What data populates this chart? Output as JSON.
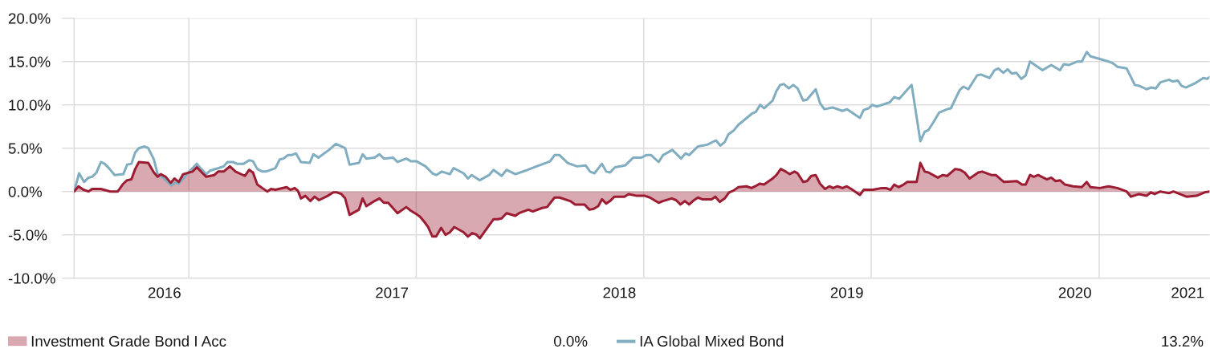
{
  "chart_data": {
    "type": "line",
    "xlim": [
      "2016-07-01",
      "2021-06-27"
    ],
    "ylim": [
      -10,
      20
    ],
    "xticks": [
      {
        "value": "2016-11-23",
        "label": "2016"
      },
      {
        "value": "2017-01-01",
        "label": null
      },
      {
        "value": "2017-11-23",
        "label": "2017"
      },
      {
        "value": "2018-01-01",
        "label": null
      },
      {
        "value": "2018-11-23",
        "label": "2018"
      },
      {
        "value": "2019-01-01",
        "label": null
      },
      {
        "value": "2019-11-23",
        "label": "2019"
      },
      {
        "value": "2020-01-01",
        "label": null
      },
      {
        "value": "2020-11-23",
        "label": "2020"
      },
      {
        "value": "2021-01-01",
        "label": null
      },
      {
        "value": "2021-05-23",
        "label": "2021"
      }
    ],
    "yticks": [
      {
        "value": -10,
        "label": "-10.0%"
      },
      {
        "value": -5,
        "label": "-5.0%"
      },
      {
        "value": 0,
        "label": "0.0%"
      },
      {
        "value": 5,
        "label": "5.0%"
      },
      {
        "value": 10,
        "label": "10.0%"
      },
      {
        "value": 15,
        "label": "15.0%"
      },
      {
        "value": 20,
        "label": "20.0%"
      }
    ],
    "grid": true,
    "legend": "bottom",
    "annotations": [
      "0.0%",
      "13.2%"
    ],
    "series": [
      {
        "name": "Investment Grade Bond I Acc",
        "type": "area",
        "color": "#9c1d33",
        "x": [
          "2016-07-01",
          "2016-07-08",
          "2016-07-16",
          "2016-07-24",
          "2016-07-30",
          "2016-08-13",
          "2016-08-28",
          "2016-09-09",
          "2016-09-18",
          "2016-09-24",
          "2016-10-01",
          "2016-10-07",
          "2016-10-13",
          "2016-10-28",
          "2016-11-06",
          "2016-11-12",
          "2016-11-17",
          "2016-11-25",
          "2016-12-03",
          "2016-12-09",
          "2016-12-16",
          "2016-12-23",
          "2017-01-07",
          "2017-01-14",
          "2017-01-22",
          "2017-01-29",
          "2017-02-11",
          "2017-02-17",
          "2017-02-26",
          "2017-03-08",
          "2017-03-17",
          "2017-04-01",
          "2017-04-08",
          "2017-04-14",
          "2017-04-21",
          "2017-04-29",
          "2017-05-07",
          "2017-05-13",
          "2017-05-20",
          "2017-06-07",
          "2017-06-13",
          "2017-06-20",
          "2017-06-25",
          "2017-06-30",
          "2017-07-07",
          "2017-07-15",
          "2017-07-22",
          "2017-07-29",
          "2017-08-12",
          "2017-08-21",
          "2017-08-27",
          "2017-09-03",
          "2017-09-09",
          "2017-09-16",
          "2017-10-01",
          "2017-10-07",
          "2017-10-13",
          "2017-10-26",
          "2017-11-03",
          "2017-11-10",
          "2017-11-17",
          "2017-12-02",
          "2017-12-16",
          "2017-12-23",
          "2018-01-01",
          "2018-01-07",
          "2018-01-14",
          "2018-01-20",
          "2018-01-27",
          "2018-02-02",
          "2018-02-10",
          "2018-02-17",
          "2018-02-24",
          "2018-03-03",
          "2018-03-18",
          "2018-03-25",
          "2018-04-01",
          "2018-04-08",
          "2018-04-13",
          "2018-04-27",
          "2018-05-05",
          "2018-05-12",
          "2018-05-18",
          "2018-05-26",
          "2018-06-09",
          "2018-06-15",
          "2018-06-30",
          "2018-07-07",
          "2018-07-22",
          "2018-07-30",
          "2018-08-11",
          "2018-08-19",
          "2018-09-05",
          "2018-09-13",
          "2018-09-28",
          "2018-10-06",
          "2018-10-13",
          "2018-10-20",
          "2018-10-26",
          "2018-11-02",
          "2018-11-08",
          "2018-11-15",
          "2018-12-01",
          "2018-12-08",
          "2018-12-21",
          "2019-01-03",
          "2019-01-11",
          "2019-01-25",
          "2019-02-01",
          "2019-02-15",
          "2019-02-22",
          "2019-03-01",
          "2019-03-08",
          "2019-03-15",
          "2019-03-21",
          "2019-03-29",
          "2019-04-05",
          "2019-04-20",
          "2019-04-26",
          "2019-05-03",
          "2019-05-11",
          "2019-05-18",
          "2019-05-25",
          "2019-06-02",
          "2019-06-15",
          "2019-06-23",
          "2019-06-29",
          "2019-07-06",
          "2019-07-13",
          "2019-07-27",
          "2019-08-02",
          "2019-08-09",
          "2019-08-17",
          "2019-08-23",
          "2019-08-31",
          "2019-09-05",
          "2019-09-14",
          "2019-09-20",
          "2019-09-27",
          "2019-10-04",
          "2019-10-11",
          "2019-10-19",
          "2019-10-26",
          "2019-11-01",
          "2019-11-08",
          "2019-11-16",
          "2019-11-23",
          "2019-11-30",
          "2019-12-14",
          "2019-12-20",
          "2020-01-04",
          "2020-01-18",
          "2020-01-25",
          "2020-02-01",
          "2020-02-07",
          "2020-02-14",
          "2020-02-22",
          "2020-02-28",
          "2020-03-14",
          "2020-03-20",
          "2020-03-27",
          "2020-04-02",
          "2020-04-17",
          "2020-04-25",
          "2020-05-02",
          "2020-05-15",
          "2020-05-23",
          "2020-05-30",
          "2020-06-07",
          "2020-06-21",
          "2020-06-27",
          "2020-07-12",
          "2020-07-19",
          "2020-08-01",
          "2020-08-22",
          "2020-08-30",
          "2020-09-05",
          "2020-09-12",
          "2020-09-18",
          "2020-09-25",
          "2020-10-09",
          "2020-10-16",
          "2020-10-23",
          "2020-10-30",
          "2020-11-07",
          "2020-11-20",
          "2020-12-04",
          "2020-12-12",
          "2020-12-18",
          "2021-01-02",
          "2021-01-16",
          "2021-01-30",
          "2021-02-14",
          "2021-02-21",
          "2021-03-06",
          "2021-03-18",
          "2021-03-25",
          "2021-03-31",
          "2021-04-09",
          "2021-04-23",
          "2021-04-30",
          "2021-05-21",
          "2021-06-06",
          "2021-06-19",
          "2021-06-27"
        ],
        "values": [
          0.0,
          0.6,
          0.2,
          0.0,
          0.3,
          0.3,
          0.0,
          0.0,
          0.9,
          1.3,
          1.4,
          2.6,
          3.4,
          3.3,
          2.2,
          1.7,
          2.0,
          1.7,
          1.0,
          1.5,
          1.1,
          2.0,
          2.3,
          2.8,
          2.2,
          1.7,
          1.9,
          2.3,
          2.3,
          2.9,
          2.3,
          1.8,
          2.5,
          2.2,
          0.8,
          0.4,
          0.0,
          0.3,
          0.2,
          0.5,
          0.2,
          0.4,
          0.1,
          -0.8,
          -0.5,
          -1.1,
          -0.6,
          -1.0,
          -0.5,
          -0.1,
          -0.1,
          -0.3,
          -0.8,
          -2.7,
          -2.1,
          -0.8,
          -1.7,
          -1.1,
          -0.8,
          -1.3,
          -1.3,
          -2.5,
          -1.8,
          -2.2,
          -2.6,
          -2.9,
          -3.5,
          -4.1,
          -5.2,
          -5.2,
          -4.2,
          -5.0,
          -4.7,
          -4.1,
          -4.7,
          -5.2,
          -4.8,
          -5.0,
          -5.4,
          -4.0,
          -3.2,
          -3.2,
          -3.1,
          -2.5,
          -2.8,
          -2.5,
          -2.1,
          -2.3,
          -1.9,
          -1.8,
          -0.7,
          -0.7,
          -1.1,
          -1.5,
          -1.5,
          -2.1,
          -2.0,
          -1.7,
          -0.9,
          -1.4,
          -1.1,
          -0.6,
          -0.6,
          -0.3,
          -0.5,
          -0.5,
          -0.7,
          -1.3,
          -1.1,
          -0.8,
          -1.0,
          -1.5,
          -1.1,
          -1.5,
          -1.1,
          -0.7,
          -0.9,
          -0.9,
          -0.6,
          -1.2,
          -0.8,
          -0.1,
          0.1,
          0.5,
          0.6,
          0.4,
          0.6,
          0.9,
          0.8,
          1.5,
          1.9,
          2.6,
          2.3,
          2.0,
          2.3,
          2.1,
          1.1,
          1.2,
          1.8,
          1.9,
          0.9,
          0.3,
          0.6,
          0.4,
          0.6,
          0.4,
          0.6,
          0.3,
          -0.4,
          0.2,
          0.2,
          0.4,
          0.4,
          0.2,
          0.8,
          0.5,
          0.8,
          1.1,
          1.1,
          3.3,
          2.3,
          2.2,
          1.6,
          1.9,
          1.8,
          2.6,
          2.5,
          2.2,
          1.5,
          2.2,
          2.3,
          1.9,
          1.9,
          1.1,
          1.2,
          0.8,
          0.8,
          1.9,
          1.7,
          1.9,
          1.4,
          1.6,
          1.2,
          1.3,
          0.8,
          0.6,
          0.5,
          1.1,
          0.5,
          0.4,
          0.6,
          0.4,
          0.0,
          -0.6,
          -0.3,
          -0.5,
          -0.1,
          -0.3,
          0.0,
          -0.2,
          0.0,
          -0.6,
          -0.5,
          -0.1,
          0.0
        ]
      },
      {
        "name": "IA Global Mixed Bond",
        "color": "#80adbf",
        "x": [
          "2016-07-01",
          "2016-07-09",
          "2016-07-17",
          "2016-07-24",
          "2016-07-30",
          "2016-08-06",
          "2016-08-13",
          "2016-08-19",
          "2016-08-27",
          "2016-09-04",
          "2016-09-18",
          "2016-09-24",
          "2016-10-01",
          "2016-10-07",
          "2016-10-13",
          "2016-10-22",
          "2016-10-28",
          "2016-11-06",
          "2016-11-12",
          "2016-11-19",
          "2016-11-26",
          "2016-12-04",
          "2016-12-10",
          "2016-12-16",
          "2016-12-30",
          "2017-01-14",
          "2017-01-21",
          "2017-01-29",
          "2017-02-04",
          "2017-02-18",
          "2017-02-26",
          "2017-03-04",
          "2017-03-13",
          "2017-03-19",
          "2017-03-30",
          "2017-04-08",
          "2017-04-14",
          "2017-04-21",
          "2017-04-29",
          "2017-05-05",
          "2017-05-20",
          "2017-05-27",
          "2017-06-02",
          "2017-06-09",
          "2017-06-15",
          "2017-06-22",
          "2017-06-30",
          "2017-07-14",
          "2017-07-20",
          "2017-07-28",
          "2017-08-14",
          "2017-08-25",
          "2017-09-09",
          "2017-09-16",
          "2017-10-01",
          "2017-10-07",
          "2017-10-13",
          "2017-10-26",
          "2017-11-03",
          "2017-11-10",
          "2017-11-25",
          "2017-12-02",
          "2017-12-16",
          "2017-12-23",
          "2018-01-01",
          "2018-01-16",
          "2018-01-27",
          "2018-02-02",
          "2018-02-11",
          "2018-02-24",
          "2018-03-02",
          "2018-03-18",
          "2018-03-25",
          "2018-03-31",
          "2018-04-13",
          "2018-04-28",
          "2018-05-05",
          "2018-05-18",
          "2018-05-26",
          "2018-06-09",
          "2018-06-25",
          "2018-07-13",
          "2018-07-28",
          "2018-08-04",
          "2018-08-11",
          "2018-08-19",
          "2018-09-01",
          "2018-09-16",
          "2018-09-30",
          "2018-10-07",
          "2018-10-14",
          "2018-10-26",
          "2018-11-02",
          "2018-11-08",
          "2018-11-16",
          "2018-12-02",
          "2018-12-15",
          "2018-12-28",
          "2019-01-05",
          "2019-01-13",
          "2019-01-25",
          "2019-02-01",
          "2019-02-16",
          "2019-03-02",
          "2019-03-09",
          "2019-03-15",
          "2019-03-29",
          "2019-04-13",
          "2019-04-27",
          "2019-05-04",
          "2019-05-11",
          "2019-05-17",
          "2019-05-25",
          "2019-06-02",
          "2019-06-09",
          "2019-06-24",
          "2019-06-30",
          "2019-07-07",
          "2019-07-13",
          "2019-07-27",
          "2019-08-02",
          "2019-08-08",
          "2019-08-14",
          "2019-08-22",
          "2019-08-29",
          "2019-09-05",
          "2019-09-14",
          "2019-09-20",
          "2019-10-04",
          "2019-10-11",
          "2019-10-18",
          "2019-10-31",
          "2019-11-16",
          "2019-11-23",
          "2019-12-14",
          "2019-12-20",
          "2019-12-28",
          "2020-01-03",
          "2020-01-10",
          "2020-01-31",
          "2020-02-07",
          "2020-02-15",
          "2020-03-06",
          "2020-03-20",
          "2020-03-27",
          "2020-04-02",
          "2020-04-10",
          "2020-04-19",
          "2020-05-02",
          "2020-05-08",
          "2020-05-22",
          "2020-05-28",
          "2020-06-05",
          "2020-06-19",
          "2020-06-25",
          "2020-07-09",
          "2020-07-17",
          "2020-07-23",
          "2020-07-31",
          "2020-08-07",
          "2020-08-14",
          "2020-08-21",
          "2020-08-29",
          "2020-09-05",
          "2020-09-12",
          "2020-09-18",
          "2020-10-02",
          "2020-10-16",
          "2020-10-30",
          "2020-11-05",
          "2020-11-13",
          "2020-11-27",
          "2020-12-04",
          "2020-12-12",
          "2020-12-18",
          "2021-01-02",
          "2021-01-16",
          "2021-01-23",
          "2021-01-30",
          "2021-02-14",
          "2021-02-21",
          "2021-02-27",
          "2021-03-06",
          "2021-03-18",
          "2021-03-25",
          "2021-04-02",
          "2021-04-09",
          "2021-04-23",
          "2021-04-29",
          "2021-05-07",
          "2021-05-13",
          "2021-05-20",
          "2021-06-04",
          "2021-06-17",
          "2021-06-23",
          "2021-06-27"
        ],
        "values": [
          0.0,
          2.1,
          1.1,
          1.6,
          1.7,
          2.2,
          3.4,
          3.2,
          2.6,
          1.9,
          2.0,
          3.1,
          3.2,
          4.5,
          5.0,
          5.2,
          5.0,
          3.7,
          2.0,
          1.7,
          1.2,
          0.7,
          1.0,
          0.9,
          2.1,
          3.2,
          2.6,
          2.0,
          2.4,
          2.7,
          2.9,
          3.4,
          3.4,
          3.2,
          3.2,
          3.6,
          3.5,
          2.6,
          2.3,
          2.3,
          2.7,
          3.7,
          3.8,
          4.2,
          4.2,
          4.4,
          3.4,
          3.3,
          4.3,
          3.9,
          4.8,
          5.5,
          5.0,
          3.1,
          3.3,
          4.3,
          3.8,
          3.9,
          4.3,
          3.8,
          3.9,
          3.4,
          3.8,
          3.5,
          3.5,
          2.9,
          2.1,
          1.9,
          2.3,
          2.0,
          2.7,
          2.1,
          1.5,
          1.9,
          1.3,
          1.9,
          2.5,
          1.8,
          2.5,
          2.0,
          2.4,
          2.9,
          3.3,
          3.5,
          4.2,
          4.2,
          3.3,
          2.9,
          3.0,
          2.3,
          2.1,
          3.2,
          2.3,
          2.2,
          2.8,
          3.0,
          3.9,
          3.9,
          4.2,
          4.2,
          3.4,
          4.2,
          4.8,
          3.8,
          4.4,
          4.2,
          5.2,
          5.4,
          5.9,
          5.3,
          5.7,
          6.6,
          7.0,
          7.7,
          8.1,
          9.0,
          9.2,
          10.0,
          9.6,
          10.5,
          11.6,
          12.3,
          12.4,
          11.9,
          12.3,
          11.9,
          10.5,
          10.6,
          11.8,
          10.2,
          9.5,
          9.7,
          9.3,
          9.5,
          8.5,
          9.4,
          9.6,
          10.0,
          9.8,
          10.3,
          10.9,
          10.7,
          12.3,
          5.8,
          6.9,
          7.1,
          8.0,
          9.1,
          9.5,
          9.6,
          11.7,
          12.1,
          11.8,
          13.4,
          13.5,
          13.1,
          14.0,
          14.2,
          13.7,
          14.1,
          13.6,
          13.7,
          13.0,
          13.4,
          15.0,
          14.7,
          14.0,
          14.6,
          14.0,
          14.7,
          14.6,
          15.0,
          15.0,
          16.1,
          15.6,
          15.3,
          15.0,
          14.8,
          14.4,
          14.2,
          13.2,
          12.3,
          12.2,
          11.8,
          12.0,
          11.9,
          12.6,
          12.9,
          12.7,
          12.8,
          12.2,
          12.0,
          12.5,
          13.1,
          13.0,
          13.2
        ]
      }
    ]
  }
}
